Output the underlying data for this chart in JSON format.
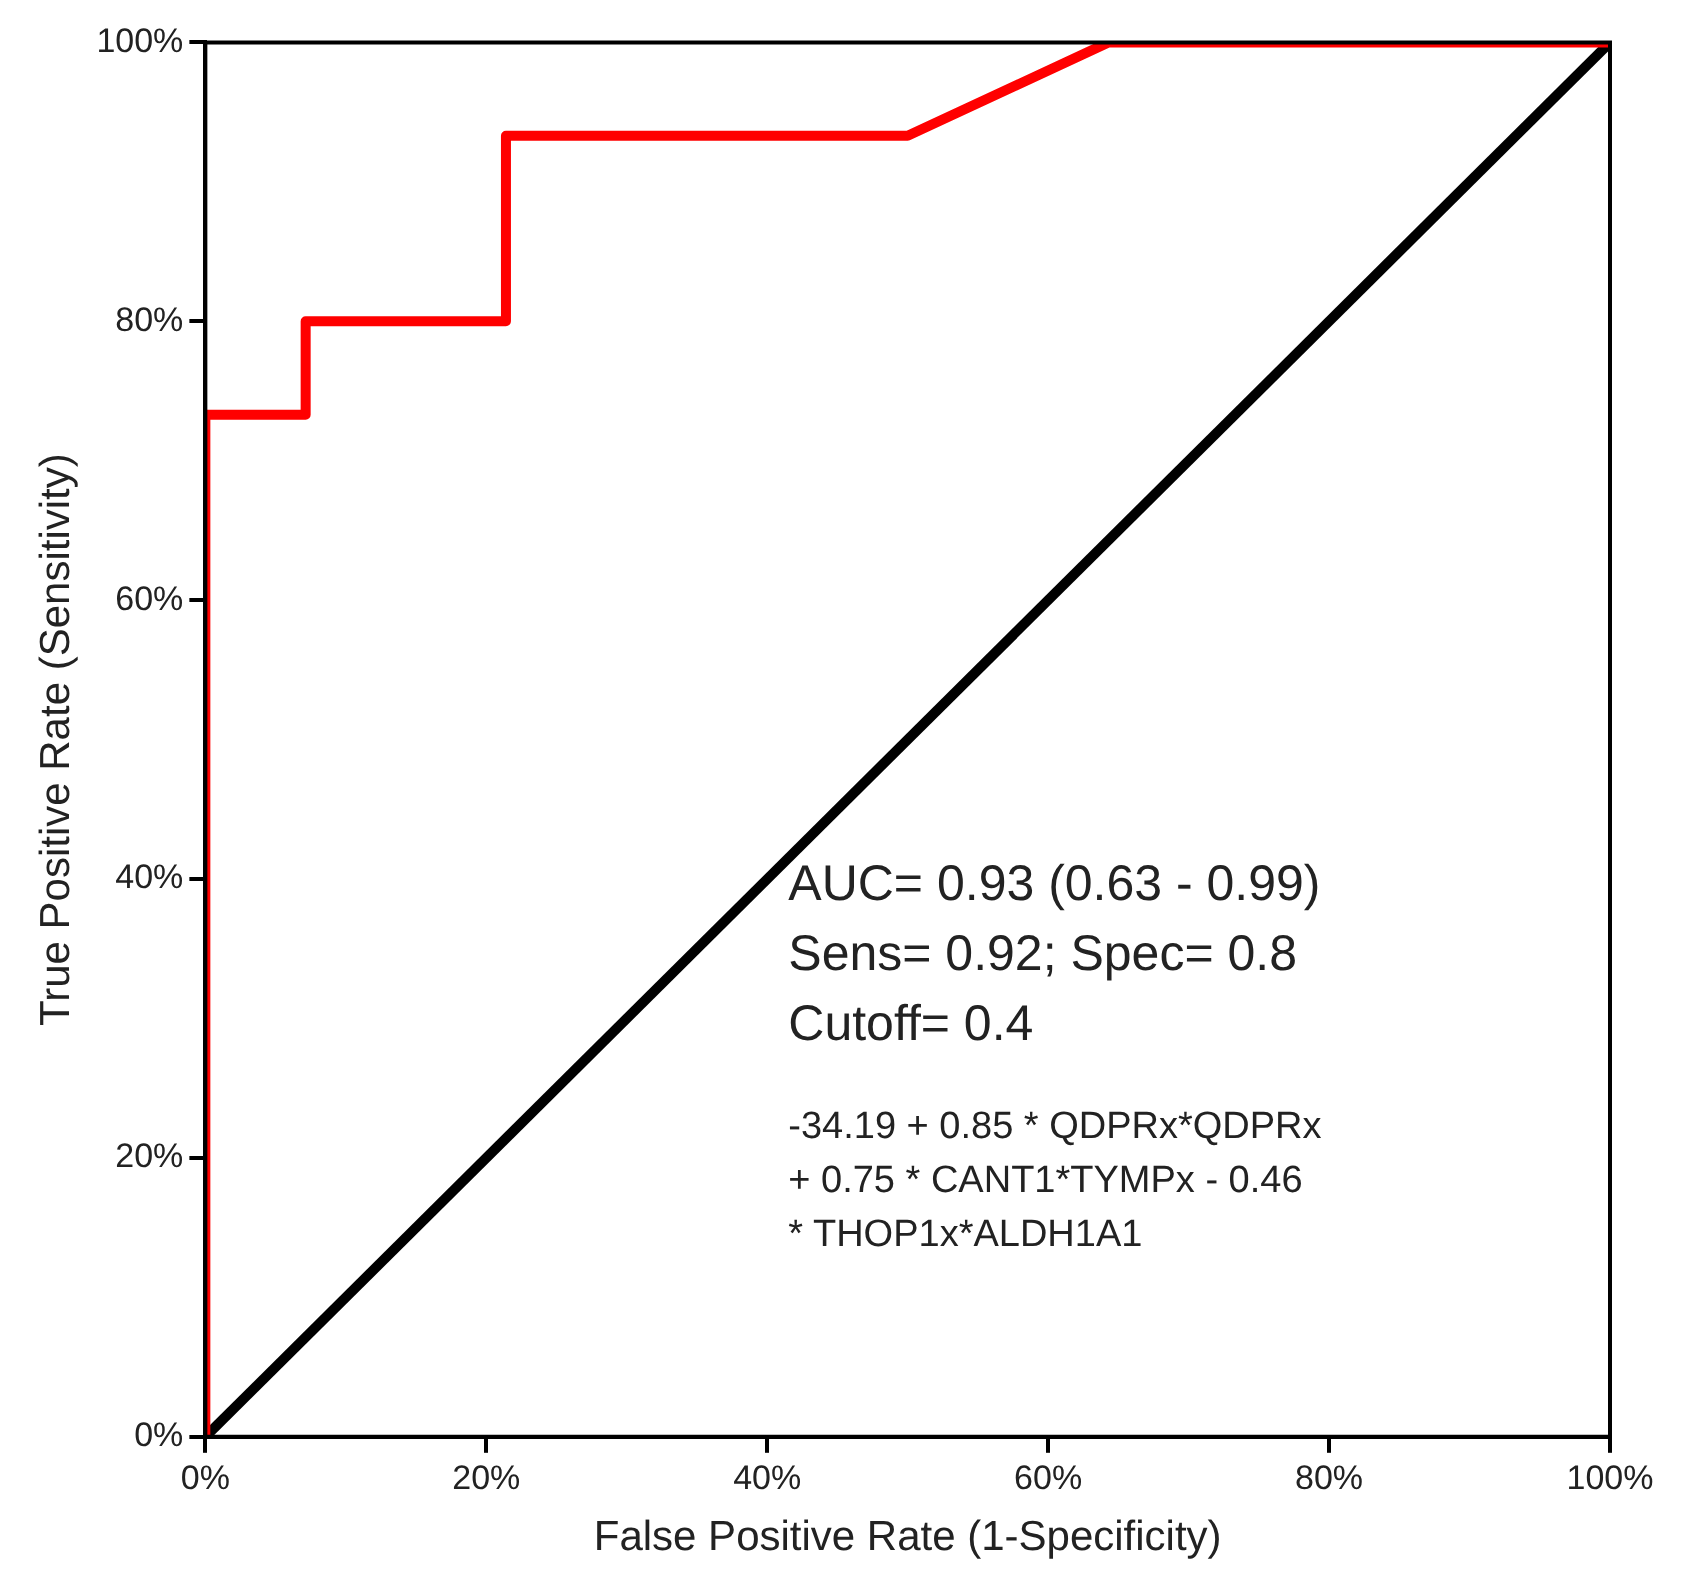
{
  "chart_data": {
    "type": "line",
    "xlabel": "False Positive Rate (1-Specificity)",
    "ylabel": "True Positive Rate (Sensitivity)",
    "series": [
      {
        "color": "#ff0000",
        "x": [
          0,
          0,
          7.14,
          7.14,
          21.4,
          21.4,
          50,
          64.3,
          100
        ],
        "values": [
          0,
          73.3,
          73.3,
          80,
          80,
          93.3,
          93.3,
          100,
          100
        ]
      },
      {
        "color": "#000000",
        "x": [
          0,
          100
        ],
        "values": [
          0,
          100
        ]
      }
    ],
    "xlim": [
      0,
      100
    ],
    "ylim": [
      0,
      100
    ],
    "xticks": [
      {
        "value": 0,
        "label": "0%"
      },
      {
        "value": 20,
        "label": "20%"
      },
      {
        "value": 40,
        "label": "40%"
      },
      {
        "value": 60,
        "label": "60%"
      },
      {
        "value": 80,
        "label": "80%"
      },
      {
        "value": 100,
        "label": "100%"
      }
    ],
    "yticks": [
      {
        "value": 0,
        "label": "0%"
      },
      {
        "value": 20,
        "label": "20%"
      },
      {
        "value": 40,
        "label": "40%"
      },
      {
        "value": 60,
        "label": "60%"
      },
      {
        "value": 80,
        "label": "80%"
      },
      {
        "value": 100,
        "label": "100%"
      }
    ],
    "grid": false,
    "legend": false,
    "marker": "none",
    "line_style": "solid",
    "annotations": [
      "AUC= 0.93 (0.63 - 0.99)",
      "Sens= 0.92; Spec= 0.8",
      "Cutoff= 0.4",
      "-34.19 + 0.85 * QDPRx*QDPRx",
      "+ 0.75 * CANT1*TYMPx - 0.46",
      "* THOP1x*ALDH1A1"
    ]
  }
}
